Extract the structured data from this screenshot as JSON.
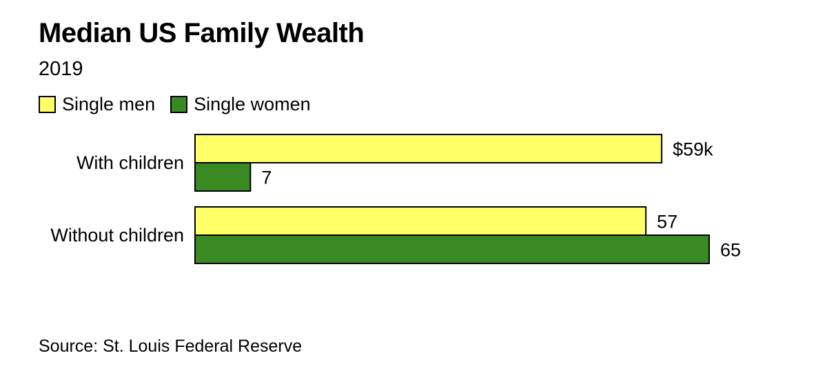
{
  "chart_data": {
    "type": "bar",
    "orientation": "horizontal",
    "title": "Median US Family Wealth",
    "subtitle": "2019",
    "categories": [
      "With children",
      "Without children"
    ],
    "series": [
      {
        "name": "Single men",
        "values": [
          59,
          57
        ],
        "labels": [
          "$59k",
          "57"
        ],
        "color": "#ffff66"
      },
      {
        "name": "Single women",
        "values": [
          7,
          65
        ],
        "labels": [
          "7",
          "65"
        ],
        "color": "#3a8a24"
      }
    ],
    "xlim": [
      0,
      65
    ],
    "grid": false,
    "legend_position": "top-left",
    "source": "Source: St. Louis Federal Reserve"
  }
}
